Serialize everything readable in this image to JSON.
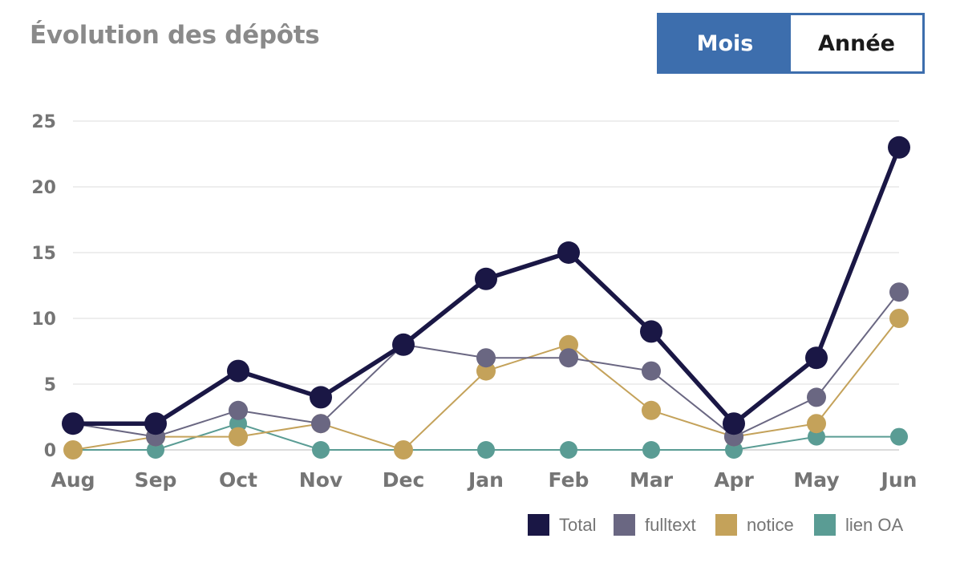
{
  "header": {
    "title": "Évolution des dépôts",
    "toggle": {
      "month_label": "Mois",
      "year_label": "Année",
      "active": "month"
    }
  },
  "colors": {
    "accent": "#3d6ead",
    "total": "#1a1745",
    "fulltext": "#6a6782",
    "notice": "#c4a25a",
    "lien_oa": "#5a9c94"
  },
  "chart_data": {
    "type": "line",
    "title": "Évolution des dépôts",
    "xlabel": "",
    "ylabel": "",
    "categories": [
      "Aug",
      "Sep",
      "Oct",
      "Nov",
      "Dec",
      "Jan",
      "Feb",
      "Mar",
      "Apr",
      "May",
      "Jun"
    ],
    "ylim": [
      0,
      25
    ],
    "yticks": [
      0,
      5,
      10,
      15,
      20,
      25
    ],
    "grid": true,
    "legend_position": "bottom-right",
    "series": [
      {
        "name": "Total",
        "color": "#1a1745",
        "values": [
          2,
          2,
          6,
          4,
          8,
          13,
          15,
          9,
          2,
          7,
          23
        ]
      },
      {
        "name": "fulltext",
        "color": "#6a6782",
        "values": [
          2,
          1,
          3,
          2,
          8,
          7,
          7,
          6,
          1,
          4,
          12
        ]
      },
      {
        "name": "notice",
        "color": "#c4a25a",
        "values": [
          0,
          1,
          1,
          2,
          0,
          6,
          8,
          3,
          1,
          2,
          10
        ]
      },
      {
        "name": "lien OA",
        "color": "#5a9c94",
        "values": [
          0,
          0,
          2,
          0,
          0,
          0,
          0,
          0,
          0,
          1,
          1
        ]
      }
    ]
  }
}
